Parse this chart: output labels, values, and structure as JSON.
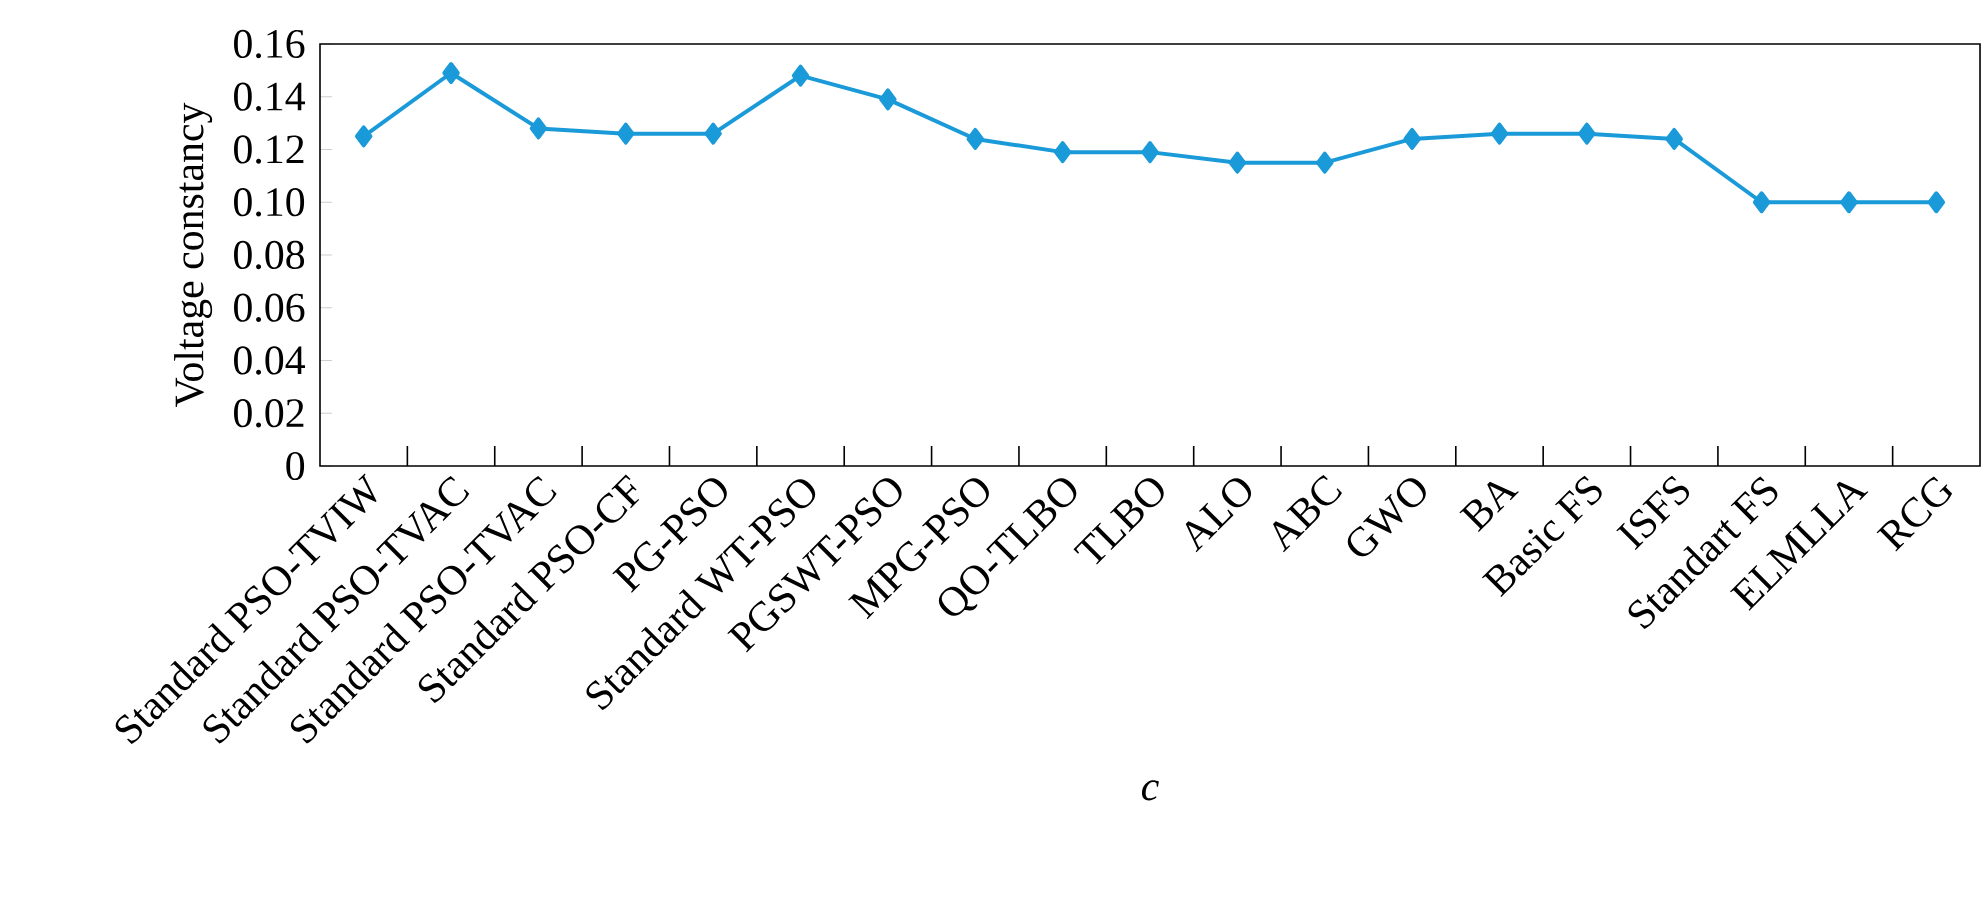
{
  "chart_data": {
    "type": "line",
    "xlabel": "c",
    "ylabel": "Voltage  constancy",
    "categories": [
      "Standard PSO-TVIW",
      "Standard PSO-TVAC",
      "Standard PSO-TVAC",
      "Standard PSO-CF",
      "PG-PSO",
      "Standard WT-PSO",
      "PGSWT-PSO",
      "MPG-PSO",
      "QO-TLBO",
      "TLBO",
      "ALO",
      "ABC",
      "GWO",
      "BA",
      "Basic FS",
      "ISFS",
      "Standart FS",
      "ELMLLA",
      "RCG"
    ],
    "values": [
      0.125,
      0.149,
      0.128,
      0.126,
      0.126,
      0.148,
      0.139,
      0.124,
      0.119,
      0.119,
      0.115,
      0.115,
      0.124,
      0.126,
      0.126,
      0.124,
      0.1,
      0.1,
      0.1
    ],
    "color": "#1a9ad8",
    "marker": "diamond",
    "line_style": "solid",
    "ylim": [
      0,
      0.16
    ],
    "yticks": [
      {
        "value": 0,
        "label": "0"
      },
      {
        "value": 0.02,
        "label": "0.02"
      },
      {
        "value": 0.04,
        "label": "0.04"
      },
      {
        "value": 0.06,
        "label": "0.06"
      },
      {
        "value": 0.08,
        "label": "0.08"
      },
      {
        "value": 0.1,
        "label": "0.10"
      },
      {
        "value": 0.12,
        "label": "0.12"
      },
      {
        "value": 0.14,
        "label": "0.14"
      },
      {
        "value": 0.16,
        "label": "0.16"
      }
    ]
  }
}
